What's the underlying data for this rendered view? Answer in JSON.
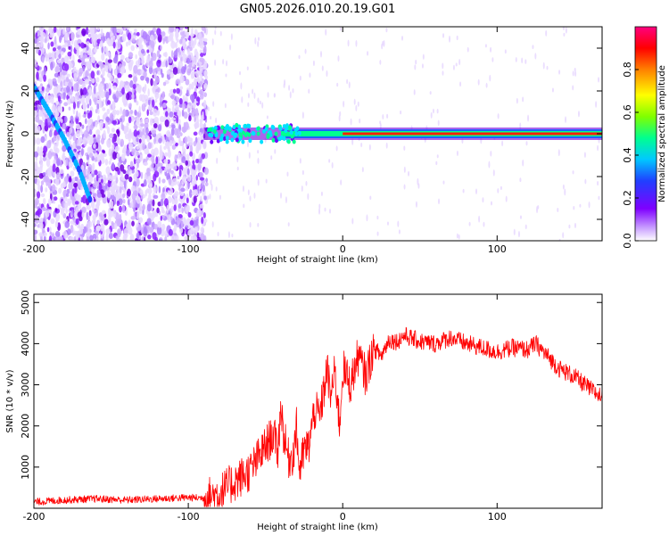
{
  "title": "GN05.2026.010.20.19.G01",
  "chart_data": [
    {
      "type": "heatmap",
      "title": "GN05.2026.010.20.19.G01",
      "xlabel": "Height of straight line (km)",
      "ylabel": "Frequency (Hz)",
      "xlim": [
        -200,
        168
      ],
      "ylim": [
        -50,
        50
      ],
      "xticks": [
        -200,
        -100,
        0,
        100
      ],
      "yticks": [
        -40,
        -20,
        0,
        20,
        40
      ],
      "colorbar": {
        "label": "Normalized spectral amplitude",
        "range": [
          0,
          1
        ],
        "ticks": [
          "0.0",
          "0.2",
          "0.4",
          "0.6",
          "0.8"
        ]
      },
      "features": [
        {
          "name": "diagonal-trace",
          "points": [
            [
              -200,
              22
            ],
            [
              -190,
              10
            ],
            [
              -180,
              -3
            ],
            [
              -170,
              -18
            ],
            [
              -163,
              -32
            ]
          ]
        },
        {
          "name": "carrier-line",
          "freq_hz": 0,
          "x_start": -90,
          "x_end": 168
        }
      ],
      "colors": {
        "low": "#7f00ff",
        "mid": "#00ff80",
        "high": "#ff0000",
        "top": "#ff0080"
      }
    },
    {
      "type": "line",
      "xlabel": "Height of straight line (km)",
      "ylabel": "SNR (10 * v/v)",
      "xlim": [
        -200,
        168
      ],
      "ylim": [
        0,
        5200
      ],
      "xticks": [
        -200,
        -100,
        0,
        100
      ],
      "yticks": [
        1000,
        2000,
        3000,
        4000,
        5000
      ],
      "series": [
        {
          "name": "SNR",
          "color": "#ff0000",
          "x": [
            -200,
            -180,
            -160,
            -140,
            -120,
            -100,
            -90,
            -80,
            -70,
            -60,
            -50,
            -45,
            -42,
            -40,
            -38,
            -35,
            -32,
            -30,
            -28,
            -25,
            -22,
            -20,
            -18,
            -15,
            -12,
            -10,
            -8,
            -5,
            -2,
            0,
            5,
            10,
            15,
            20,
            25,
            30,
            35,
            40,
            50,
            60,
            70,
            80,
            90,
            100,
            110,
            120,
            125,
            130,
            140,
            150,
            160,
            168
          ],
          "values": [
            150,
            200,
            230,
            200,
            230,
            260,
            250,
            350,
            650,
            900,
            1500,
            1800,
            1400,
            2500,
            1700,
            1200,
            1300,
            2000,
            900,
            1400,
            1500,
            2000,
            2400,
            2200,
            2900,
            3400,
            2700,
            3300,
            2000,
            3400,
            3000,
            3700,
            3200,
            3900,
            3700,
            4100,
            4050,
            4200,
            4050,
            4000,
            4150,
            4000,
            3900,
            3800,
            3900,
            3850,
            4000,
            3800,
            3400,
            3200,
            2900,
            2700
          ]
        }
      ]
    }
  ]
}
